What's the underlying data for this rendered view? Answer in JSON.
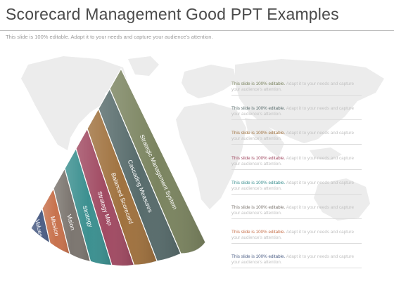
{
  "slide": {
    "title": "Scorecard Management Good PPT Examples",
    "subtitle": "This slide is 100% editable. Adapt it to your needs and capture your audience's attention."
  },
  "cone": {
    "segments": [
      {
        "label": "Values",
        "color": "#4d5f86"
      },
      {
        "label": "Mission",
        "color": "#c8724d"
      },
      {
        "label": "Vision",
        "color": "#7c7670"
      },
      {
        "label": "Strategy",
        "color": "#3c9090"
      },
      {
        "label": "Strategy Map",
        "color": "#a14b63"
      },
      {
        "label": "Balanced Scorecard",
        "color": "#a0723f"
      },
      {
        "label": "Cascading Measures",
        "color": "#586c6c"
      },
      {
        "label": "Strategic Management System",
        "color": "#7b8460"
      }
    ]
  },
  "notes": [
    {
      "lead": "This slide is 100% editable.",
      "rest": " Adapt it to your needs and capture your audience's attention.",
      "lead_color": "#7b8460"
    },
    {
      "lead": "This slide is 100% editable.",
      "rest": " Adapt it to your needs and capture your audience's attention.",
      "lead_color": "#586c6c"
    },
    {
      "lead": "This slide is 100% editable.",
      "rest": " Adapt it to your needs and capture your audience's attention.",
      "lead_color": "#a0723f"
    },
    {
      "lead": "This slide is 100% editable.",
      "rest": " Adapt it to your needs and capture your audience's attention.",
      "lead_color": "#a14b63"
    },
    {
      "lead": "This slide is 100% editable.",
      "rest": " Adapt it to your needs and capture your audience's attention.",
      "lead_color": "#3c9090"
    },
    {
      "lead": "This slide is 100% editable.",
      "rest": " Adapt it to your needs and capture your audience's attention.",
      "lead_color": "#7c7670"
    },
    {
      "lead": "This slide is 100% editable.",
      "rest": " Adapt it to your needs and capture your audience's attention.",
      "lead_color": "#c8724d"
    },
    {
      "lead": "This slide is 100% editable.",
      "rest": " Adapt it to your needs and capture your audience's attention.",
      "lead_color": "#4d5f86"
    }
  ]
}
